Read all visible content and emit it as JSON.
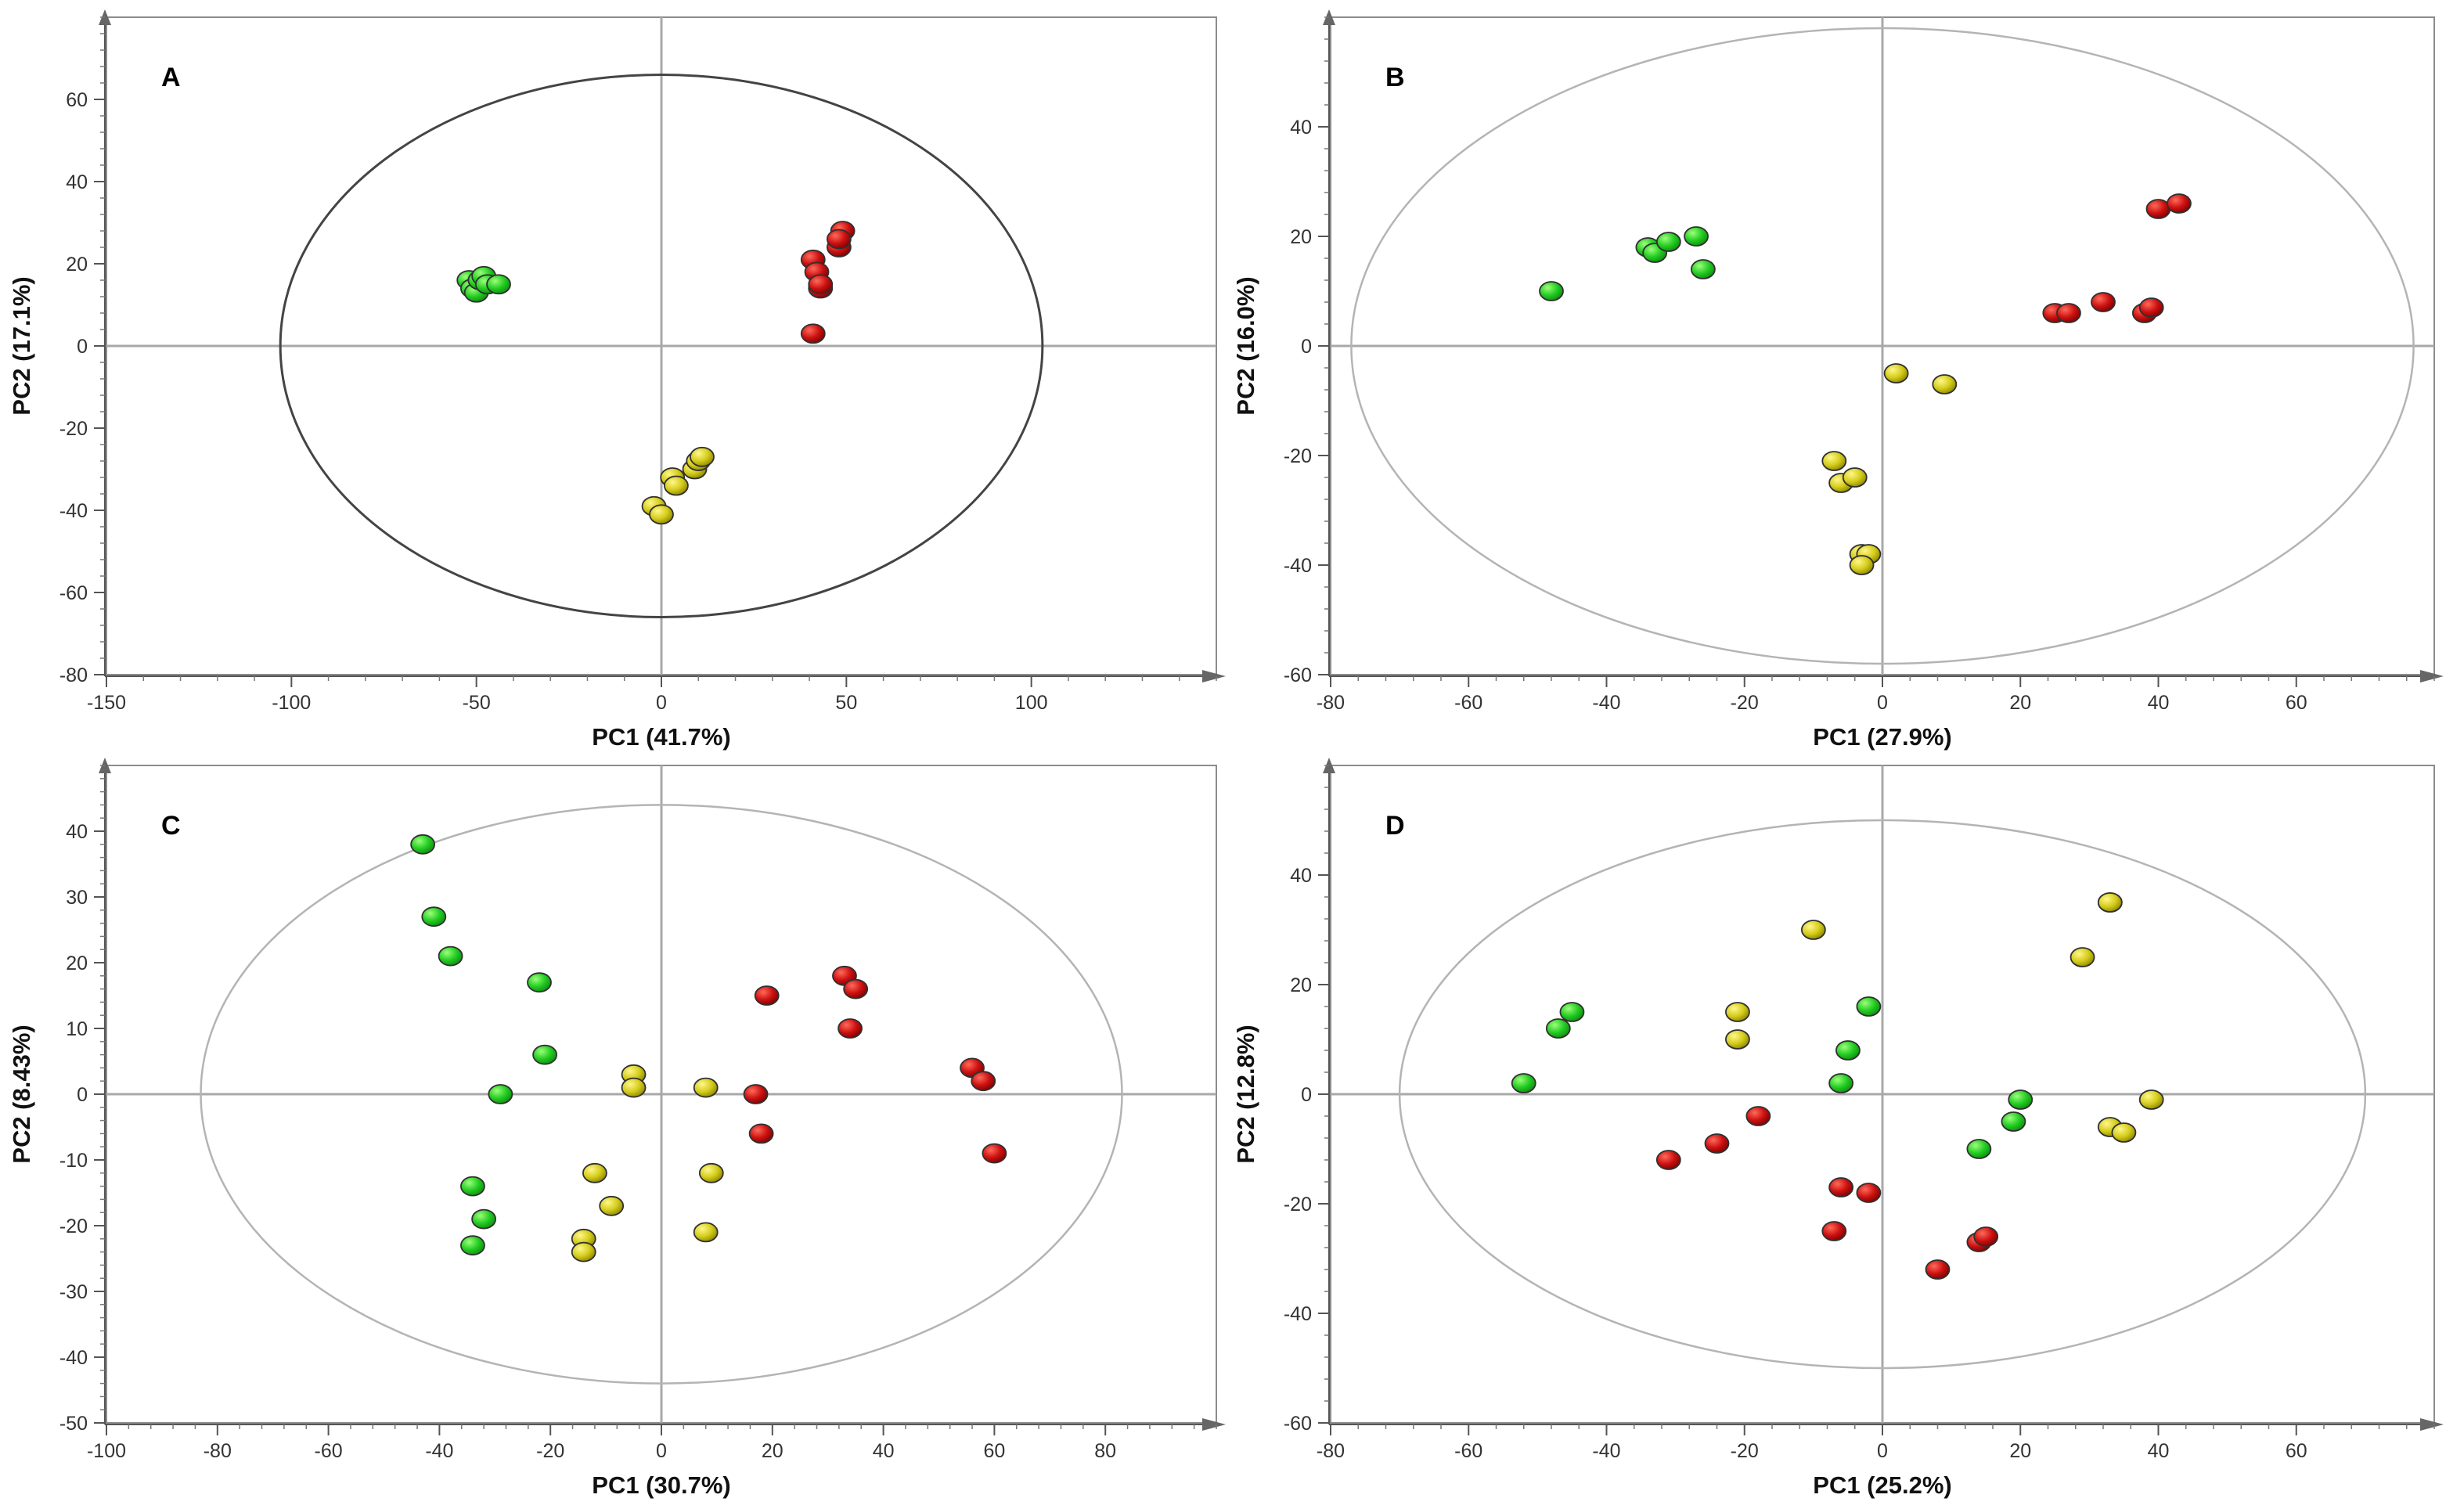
{
  "colors": {
    "group_green": "#22cc22",
    "group_red": "#cc1111",
    "group_yellow": "#d4cc1a"
  },
  "chart_data": [
    {
      "type": "scatter",
      "panel_label": "A",
      "xlabel": "PC1 (41.7%)",
      "ylabel": "PC2 (17.1%)",
      "xlim": [
        -150,
        150
      ],
      "ylim": [
        -80,
        80
      ],
      "xticks": [
        -150,
        -100,
        -50,
        0,
        50,
        100
      ],
      "yticks": [
        -80,
        -60,
        -40,
        -20,
        0,
        20,
        40,
        60
      ],
      "ellipse": {
        "rx": 103,
        "ry": 66,
        "style": "dark"
      },
      "series": [
        {
          "name": "green",
          "color": "#22cc22",
          "points": [
            [
              -52,
              16
            ],
            [
              -51,
              14
            ],
            [
              -50,
              13
            ],
            [
              -49,
              16
            ],
            [
              -48,
              17
            ],
            [
              -47,
              15
            ],
            [
              -44,
              15
            ]
          ]
        },
        {
          "name": "red",
          "color": "#cc1111",
          "points": [
            [
              41,
              3
            ],
            [
              41,
              21
            ],
            [
              42,
              18
            ],
            [
              43,
              14
            ],
            [
              43,
              15
            ],
            [
              48,
              24
            ],
            [
              49,
              28
            ],
            [
              48,
              26
            ]
          ]
        },
        {
          "name": "yellow",
          "color": "#d4cc1a",
          "points": [
            [
              -2,
              -39
            ],
            [
              0,
              -41
            ],
            [
              3,
              -32
            ],
            [
              4,
              -34
            ],
            [
              9,
              -30
            ],
            [
              10,
              -28
            ],
            [
              11,
              -27
            ]
          ]
        }
      ]
    },
    {
      "type": "scatter",
      "panel_label": "B",
      "xlabel": "PC1 (27.9%)",
      "ylabel": "PC2 (16.0%)",
      "xlim": [
        -80,
        80
      ],
      "ylim": [
        -60,
        60
      ],
      "xticks": [
        -80,
        -60,
        -40,
        -20,
        0,
        20,
        40,
        60
      ],
      "yticks": [
        -60,
        -40,
        -20,
        0,
        20,
        40
      ],
      "ellipse": {
        "rx": 77,
        "ry": 58,
        "style": "light"
      },
      "series": [
        {
          "name": "green",
          "color": "#22cc22",
          "points": [
            [
              -48,
              10
            ],
            [
              -34,
              18
            ],
            [
              -33,
              17
            ],
            [
              -31,
              19
            ],
            [
              -27,
              20
            ],
            [
              -26,
              14
            ]
          ]
        },
        {
          "name": "red",
          "color": "#cc1111",
          "points": [
            [
              25,
              6
            ],
            [
              27,
              6
            ],
            [
              32,
              8
            ],
            [
              38,
              6
            ],
            [
              39,
              7
            ],
            [
              40,
              25
            ],
            [
              43,
              26
            ]
          ]
        },
        {
          "name": "yellow",
          "color": "#d4cc1a",
          "points": [
            [
              2,
              -5
            ],
            [
              9,
              -7
            ],
            [
              -7,
              -21
            ],
            [
              -6,
              -25
            ],
            [
              -4,
              -24
            ],
            [
              -3,
              -38
            ],
            [
              -2,
              -38
            ],
            [
              -3,
              -40
            ]
          ]
        }
      ]
    },
    {
      "type": "scatter",
      "panel_label": "C",
      "xlabel": "PC1 (30.7%)",
      "ylabel": "PC2 (8.43%)",
      "xlim": [
        -100,
        100
      ],
      "ylim": [
        -50,
        50
      ],
      "xticks": [
        -100,
        -80,
        -60,
        -40,
        -20,
        0,
        20,
        40,
        60,
        80
      ],
      "yticks": [
        -50,
        -40,
        -30,
        -20,
        -10,
        0,
        10,
        20,
        30,
        40
      ],
      "ellipse": {
        "rx": 83,
        "ry": 44,
        "style": "light"
      },
      "series": [
        {
          "name": "green",
          "color": "#22cc22",
          "points": [
            [
              -43,
              38
            ],
            [
              -41,
              27
            ],
            [
              -38,
              21
            ],
            [
              -22,
              17
            ],
            [
              -21,
              6
            ],
            [
              -29,
              0
            ],
            [
              -34,
              -14
            ],
            [
              -32,
              -19
            ],
            [
              -34,
              -23
            ]
          ]
        },
        {
          "name": "red",
          "color": "#cc1111",
          "points": [
            [
              19,
              15
            ],
            [
              33,
              18
            ],
            [
              35,
              16
            ],
            [
              34,
              10
            ],
            [
              17,
              0
            ],
            [
              18,
              -6
            ],
            [
              56,
              4
            ],
            [
              58,
              2
            ],
            [
              60,
              -9
            ]
          ]
        },
        {
          "name": "yellow",
          "color": "#d4cc1a",
          "points": [
            [
              -5,
              3
            ],
            [
              -5,
              1
            ],
            [
              8,
              1
            ],
            [
              9,
              -12
            ],
            [
              -12,
              -12
            ],
            [
              -9,
              -17
            ],
            [
              -14,
              -22
            ],
            [
              -14,
              -24
            ],
            [
              8,
              -21
            ]
          ]
        }
      ]
    },
    {
      "type": "scatter",
      "panel_label": "D",
      "xlabel": "PC1 (25.2%)",
      "ylabel": "PC2 (12.8%)",
      "xlim": [
        -80,
        80
      ],
      "ylim": [
        -60,
        60
      ],
      "xticks": [
        -80,
        -60,
        -40,
        -20,
        0,
        20,
        40,
        60
      ],
      "yticks": [
        -60,
        -40,
        -20,
        0,
        20,
        40
      ],
      "ellipse": {
        "rx": 70,
        "ry": 50,
        "style": "light"
      },
      "series": [
        {
          "name": "green",
          "color": "#22cc22",
          "points": [
            [
              -52,
              2
            ],
            [
              -47,
              12
            ],
            [
              -45,
              15
            ],
            [
              -2,
              16
            ],
            [
              -5,
              8
            ],
            [
              -6,
              2
            ],
            [
              20,
              -1
            ],
            [
              19,
              -5
            ],
            [
              14,
              -10
            ]
          ]
        },
        {
          "name": "red",
          "color": "#cc1111",
          "points": [
            [
              -31,
              -12
            ],
            [
              -24,
              -9
            ],
            [
              -18,
              -4
            ],
            [
              -6,
              -17
            ],
            [
              -2,
              -18
            ],
            [
              -7,
              -25
            ],
            [
              8,
              -32
            ],
            [
              14,
              -27
            ],
            [
              15,
              -26
            ]
          ]
        },
        {
          "name": "yellow",
          "color": "#d4cc1a",
          "points": [
            [
              -10,
              30
            ],
            [
              -21,
              15
            ],
            [
              -21,
              10
            ],
            [
              33,
              35
            ],
            [
              33,
              35
            ],
            [
              29,
              25
            ],
            [
              33,
              -6
            ],
            [
              35,
              -7
            ],
            [
              39,
              -1
            ]
          ]
        }
      ]
    }
  ]
}
